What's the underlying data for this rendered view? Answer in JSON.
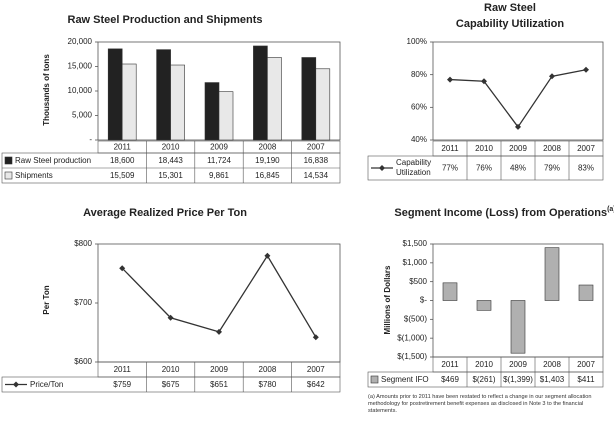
{
  "chart_data": [
    {
      "type": "bar",
      "title": "Raw Steel Production and Shipments",
      "y_label": "Thousands of tons",
      "categories": [
        "2011",
        "2010",
        "2009",
        "2008",
        "2007"
      ],
      "series": [
        {
          "name": "Raw Steel production",
          "color": "#222222",
          "values": [
            18600,
            18443,
            11724,
            19190,
            16838
          ],
          "value_labels": [
            "18,600",
            "18,443",
            "11,724",
            "19,190",
            "16,838"
          ]
        },
        {
          "name": "Shipments",
          "color": "#e8e8e8",
          "values": [
            15509,
            15301,
            9861,
            16845,
            14534
          ],
          "value_labels": [
            "15,509",
            "15,301",
            "9,861",
            "16,845",
            "14,534"
          ]
        }
      ],
      "ylim": [
        0,
        20000
      ],
      "yticks": [
        {
          "value": 0,
          "label": "-"
        },
        {
          "value": 5000,
          "label": "5,000"
        },
        {
          "value": 10000,
          "label": "10,000"
        },
        {
          "value": 15000,
          "label": "15,000"
        },
        {
          "value": 20000,
          "label": "20,000"
        }
      ]
    },
    {
      "type": "line",
      "title": [
        "Raw Steel",
        "Capability Utilization"
      ],
      "categories": [
        "2011",
        "2010",
        "2009",
        "2008",
        "2007"
      ],
      "series": [
        {
          "name": "Capability Utilization",
          "color": "#333333",
          "values": [
            77,
            76,
            48,
            79,
            83
          ],
          "value_labels": [
            "77%",
            "76%",
            "48%",
            "79%",
            "83%"
          ]
        }
      ],
      "ylim": [
        40,
        100
      ],
      "yticks": [
        {
          "value": 40,
          "label": "40%"
        },
        {
          "value": 60,
          "label": "60%"
        },
        {
          "value": 80,
          "label": "80%"
        },
        {
          "value": 100,
          "label": "100%"
        }
      ]
    },
    {
      "type": "line",
      "title": "Average Realized Price Per Ton",
      "y_label": "Per Ton",
      "categories": [
        "2011",
        "2010",
        "2009",
        "2008",
        "2007"
      ],
      "series": [
        {
          "name": "Price/Ton",
          "color": "#333333",
          "values": [
            759,
            675,
            651,
            780,
            642
          ],
          "value_labels": [
            "$759",
            "$675",
            "$651",
            "$780",
            "$642"
          ]
        }
      ],
      "ylim": [
        600,
        800
      ],
      "yticks": [
        {
          "value": 600,
          "label": "$600"
        },
        {
          "value": 700,
          "label": "$700"
        },
        {
          "value": 800,
          "label": "$800"
        }
      ]
    },
    {
      "type": "bar",
      "title": "Segment Income (Loss) from Operations",
      "title_superscript": "(a)",
      "y_label": "Millions of Dollars",
      "categories": [
        "2011",
        "2010",
        "2009",
        "2008",
        "2007"
      ],
      "series": [
        {
          "name": "Segment IFO",
          "color": "#b0b0b0",
          "values": [
            469,
            -261,
            -1399,
            1403,
            411
          ],
          "value_labels": [
            "$469",
            "$(261)",
            "$(1,399)",
            "$1,403",
            "$411"
          ]
        }
      ],
      "ylim": [
        -1500,
        1500
      ],
      "yticks": [
        {
          "value": -1500,
          "label": "$(1,500)"
        },
        {
          "value": -1000,
          "label": "$(1,000)"
        },
        {
          "value": -500,
          "label": "$(500)"
        },
        {
          "value": 0,
          "label": "$-"
        },
        {
          "value": 500,
          "label": "$500"
        },
        {
          "value": 1000,
          "label": "$1,000"
        },
        {
          "value": 1500,
          "label": "$1,500"
        }
      ]
    }
  ],
  "footnote": "(a) Amounts prior to 2011 have been restated to reflect a change in our segment allocation methodology for postretirement benefit expenses as disclosed in Note 3 to the financial statements."
}
